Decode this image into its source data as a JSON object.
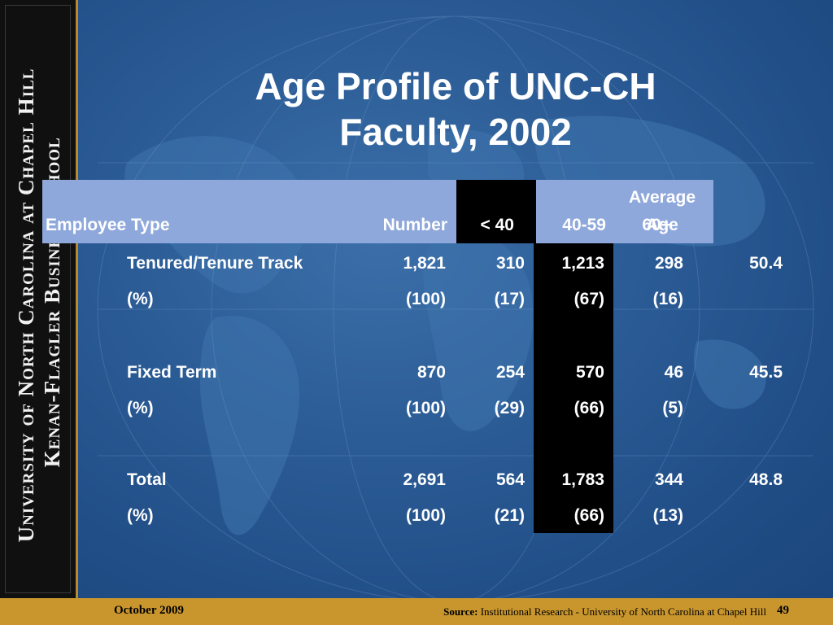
{
  "sideband": {
    "line1": "University of North Carolina at Chapel Hill",
    "line2": "Kenan-Flagler Business School"
  },
  "title": {
    "line1": "Age Profile of UNC-CH",
    "line2": "Faculty, 2002"
  },
  "table": {
    "headers": [
      "Employee Type",
      "Number",
      "< 40",
      "40-59",
      "60+",
      "Average",
      "Age"
    ],
    "rows": [
      [
        "Tenured/Tenure Track",
        "1,821",
        "310",
        "1,213",
        "298",
        "50.4"
      ],
      [
        "(%)",
        "(100)",
        "(17)",
        "(67)",
        "(16)",
        ""
      ],
      [
        "Fixed Term",
        "870",
        "254",
        "570",
        "46",
        "45.5"
      ],
      [
        "(%)",
        "(100)",
        "(29)",
        "(66)",
        "(5)",
        ""
      ],
      [
        "Total",
        "2,691",
        "564",
        "1,783",
        "344",
        "48.8"
      ],
      [
        "(%)",
        "(100)",
        "(21)",
        "(66)",
        "(13)",
        ""
      ]
    ]
  },
  "footer": {
    "date": "October 2009",
    "source_label": "Source:",
    "source_text": "Institutional Research - University of North Carolina at Chapel Hill",
    "page": "49"
  },
  "colors": {
    "background": "#2d5e98",
    "header_row": "#8fa8db",
    "highlight_column": "#000000",
    "footer": "#c9962e",
    "sideband": "#101010"
  }
}
